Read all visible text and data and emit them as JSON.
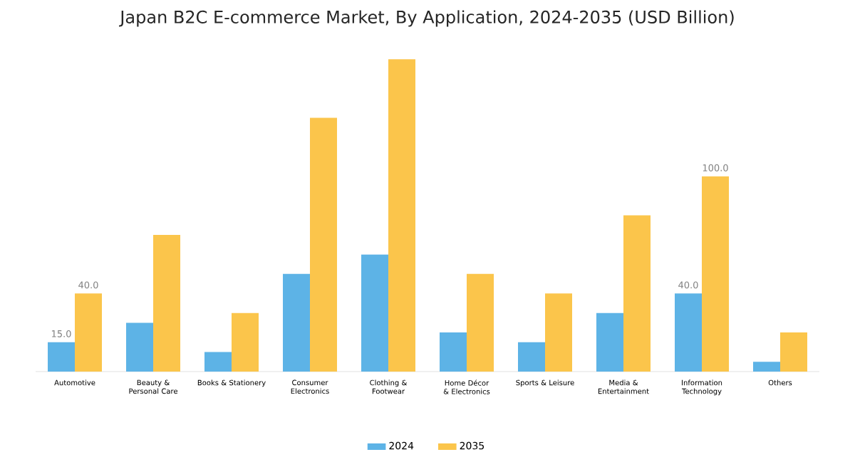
{
  "chart_data": {
    "type": "bar",
    "title": "Japan B2C E-commerce Market, By Application, 2024-2035 (USD Billion)",
    "categories": [
      "Automotive",
      "Beauty & Personal Care",
      "Books & Stationery",
      "Consumer Electronics",
      "Clothing & Footwear",
      "Home Décor & Electronics",
      "Sports & Leisure",
      "Media & Entertainment",
      "Information Technology",
      "Others"
    ],
    "series": [
      {
        "name": "2024",
        "color": "#5db3e6",
        "values": [
          15,
          25,
          10,
          50,
          60,
          20,
          15,
          30,
          40,
          5
        ],
        "value_labels": [
          "15.0",
          null,
          null,
          null,
          null,
          null,
          null,
          null,
          "40.0",
          null
        ]
      },
      {
        "name": "2035",
        "color": "#fbc54b",
        "values": [
          40,
          70,
          30,
          130,
          160,
          50,
          40,
          80,
          100,
          20
        ],
        "value_labels": [
          "40.0",
          null,
          null,
          null,
          null,
          null,
          null,
          null,
          "100.0",
          null
        ]
      }
    ],
    "tick_labels": "x",
    "legend": "bottom"
  }
}
